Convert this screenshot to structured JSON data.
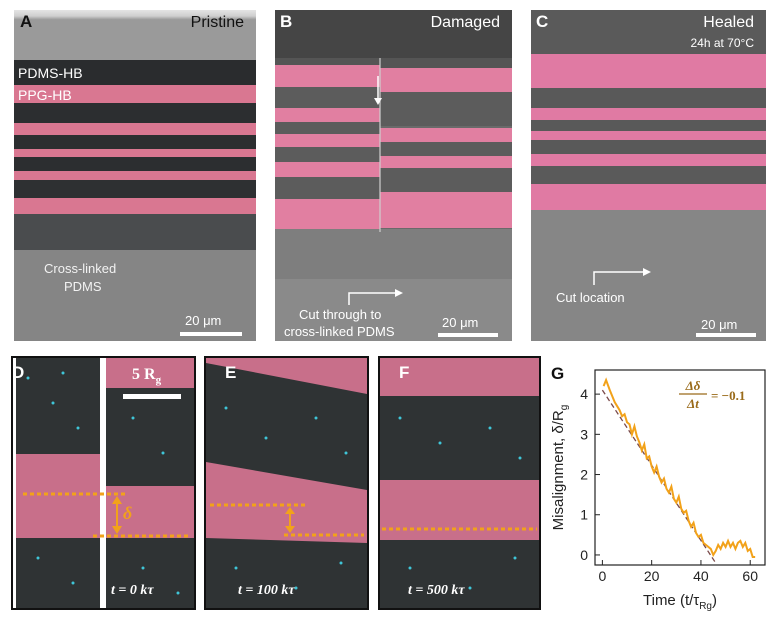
{
  "panels": {
    "a": {
      "letter": "A",
      "title": "Pristine",
      "label_pdms_hb": "PDMS-HB",
      "label_ppg_hb": "PPG-HB",
      "label_crosslinked_1": "Cross-linked",
      "label_crosslinked_2": "PDMS",
      "scale": "20 μm"
    },
    "b": {
      "letter": "B",
      "title": "Damaged",
      "cut_1": "Cut through to",
      "cut_2": "cross-linked PDMS",
      "scale": "20 μm"
    },
    "c": {
      "letter": "C",
      "title": "Healed",
      "subtitle": "24h at 70°C",
      "cut": "Cut location",
      "scale": "20 μm"
    },
    "d": {
      "letter": "D",
      "scale": "5 R",
      "scale_sub": "g",
      "delta": "δ",
      "time": "t = 0 kτ"
    },
    "e": {
      "letter": "E",
      "delta": "δ",
      "time": "t = 100 kτ"
    },
    "f": {
      "letter": "F",
      "time": "t = 500 kτ"
    },
    "g": {
      "letter": "G"
    }
  },
  "colors": {
    "pink": "#d9748f",
    "dark": "#2b2d2f",
    "orange": "#f2a21a",
    "gray": "#8c8c8c"
  },
  "chart_data": {
    "type": "line",
    "ylabel": "Misalignment, δ/R",
    "ylabel_sub": "g",
    "xlabel": "Time (t/τ",
    "xlabel_sub": "Rg",
    "xlabel_close": ")",
    "annotation": "Δδ/Δt = −0.1",
    "annotation_num": "Δδ",
    "annotation_den": "Δt",
    "annotation_val": "= −0.1",
    "xlim": [
      -3,
      66
    ],
    "ylim": [
      -0.25,
      4.6
    ],
    "xticks": [
      "0",
      "20",
      "40",
      "60"
    ],
    "yticks": [
      "0",
      "1",
      "2",
      "3",
      "4"
    ],
    "series": [
      {
        "x": [
          0.5,
          1.5,
          3,
          4,
          5,
          6,
          7,
          8,
          9,
          10,
          11,
          12,
          13,
          14,
          15,
          16,
          17,
          18,
          19,
          20,
          21,
          22,
          23,
          24,
          25,
          26,
          27,
          28,
          29,
          30,
          31,
          32,
          33,
          34,
          35,
          36,
          37,
          38,
          39,
          40,
          41,
          42,
          43,
          44,
          45,
          46,
          47,
          48,
          49,
          50,
          51,
          52,
          53,
          54,
          55,
          56,
          57,
          58,
          59,
          60,
          61,
          62
        ],
        "y": [
          4.2,
          4.35,
          4.1,
          3.95,
          3.8,
          3.7,
          3.6,
          3.45,
          3.5,
          3.3,
          3.25,
          3.0,
          3.2,
          2.95,
          2.8,
          2.6,
          2.75,
          2.4,
          2.45,
          2.2,
          2.05,
          2.2,
          1.95,
          1.8,
          1.9,
          1.65,
          1.55,
          1.7,
          1.4,
          1.3,
          1.45,
          1.15,
          1.05,
          1.1,
          0.85,
          0.7,
          0.8,
          0.55,
          0.45,
          0.5,
          0.3,
          0.25,
          0.2,
          0.15,
          0.0,
          0.1,
          0.25,
          0.15,
          0.3,
          0.2,
          0.35,
          0.2,
          0.3,
          0.15,
          0.3,
          0.35,
          0.2,
          0.3,
          0.1,
          0.15,
          -0.05,
          -0.05
        ]
      }
    ],
    "fit": {
      "x": [
        0,
        46
      ],
      "y": [
        4.1,
        -0.2
      ]
    }
  }
}
